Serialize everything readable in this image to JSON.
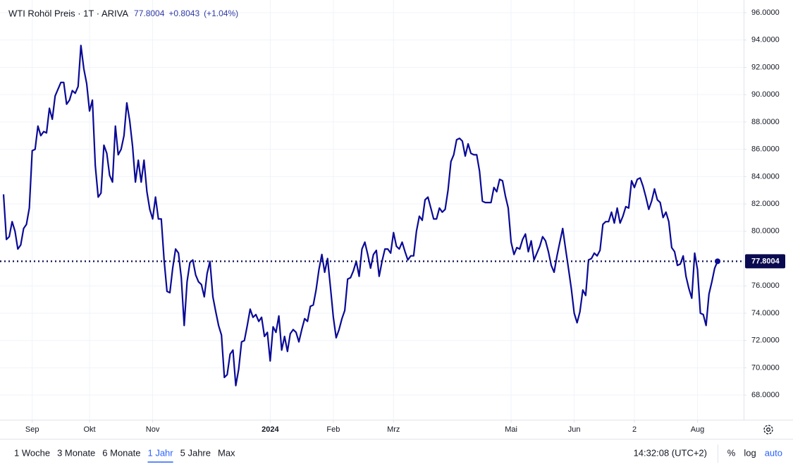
{
  "header": {
    "title": "WTI Rohöl Preis · 1T · ARIVA",
    "change": "+0.8043",
    "change_pct": "(+1.04%)"
  },
  "chart_data": {
    "type": "line",
    "color": "#0a0a96",
    "grid": true,
    "values": [
      82.7,
      79.4,
      79.6,
      80.7,
      80.0,
      78.7,
      79.0,
      80.2,
      80.5,
      81.7,
      85.9,
      86.0,
      87.7,
      87.0,
      87.3,
      87.2,
      89.0,
      88.2,
      89.9,
      90.4,
      90.9,
      90.9,
      89.3,
      89.6,
      90.3,
      90.1,
      90.6,
      93.6,
      91.9,
      90.8,
      88.8,
      89.6,
      84.8,
      82.5,
      82.8,
      86.3,
      85.7,
      84.1,
      83.6,
      87.7,
      85.6,
      86.0,
      87.0,
      89.4,
      88.1,
      86.2,
      83.6,
      85.2,
      83.6,
      85.2,
      82.9,
      81.6,
      80.9,
      82.5,
      80.9,
      80.9,
      77.9,
      75.6,
      75.5,
      77.3,
      78.7,
      78.4,
      76.6,
      73.1,
      76.3,
      77.7,
      77.9,
      76.8,
      76.3,
      76.1,
      75.2,
      76.9,
      77.8,
      75.2,
      74.1,
      73.1,
      72.4,
      69.3,
      69.5,
      71.0,
      71.3,
      68.7,
      69.9,
      71.9,
      72.0,
      73.1,
      74.3,
      73.7,
      73.9,
      73.4,
      73.7,
      72.3,
      72.6,
      70.5,
      73.0,
      72.6,
      73.8,
      71.3,
      72.3,
      71.2,
      72.5,
      72.8,
      72.6,
      71.9,
      72.8,
      73.6,
      73.4,
      74.5,
      74.6,
      75.7,
      77.2,
      78.3,
      77.0,
      78.0,
      75.9,
      73.7,
      72.2,
      72.8,
      73.6,
      74.2,
      76.5,
      76.6,
      77.1,
      77.8,
      76.7,
      78.7,
      79.2,
      78.3,
      77.3,
      78.3,
      78.6,
      76.7,
      77.8,
      78.7,
      78.7,
      78.4,
      79.9,
      78.9,
      78.7,
      79.2,
      78.5,
      77.9,
      78.2,
      78.2,
      80.0,
      81.1,
      80.8,
      82.3,
      82.5,
      81.7,
      80.9,
      80.9,
      81.7,
      81.4,
      81.6,
      83.0,
      85.1,
      85.6,
      86.7,
      86.8,
      86.6,
      85.5,
      86.4,
      85.7,
      85.6,
      85.6,
      84.4,
      82.2,
      82.1,
      82.1,
      82.1,
      83.2,
      82.9,
      83.8,
      83.7,
      82.6,
      81.7,
      79.2,
      78.3,
      78.8,
      78.7,
      79.4,
      79.8,
      78.5,
      79.3,
      77.9,
      78.4,
      78.9,
      79.6,
      79.3,
      78.5,
      77.5,
      77.0,
      78.2,
      79.2,
      80.2,
      78.7,
      77.3,
      75.8,
      74.0,
      73.3,
      74.1,
      75.7,
      75.3,
      77.9,
      78.0,
      78.4,
      78.2,
      78.6,
      80.5,
      80.7,
      80.7,
      81.4,
      80.6,
      81.7,
      80.6,
      81.1,
      81.8,
      81.7,
      83.7,
      83.2,
      83.8,
      83.9,
      83.3,
      82.5,
      81.6,
      82.2,
      83.1,
      82.3,
      82.1,
      81.0,
      81.4,
      80.7,
      78.8,
      78.5,
      77.5,
      77.6,
      78.2,
      76.7,
      75.8,
      75.1,
      78.4,
      77.2,
      74.0,
      73.9,
      73.1,
      75.4,
      76.3,
      77.3,
      77.8004
    ],
    "xlim": [
      0,
      249
    ],
    "xticks": [
      {
        "value": 10,
        "label": "Sep"
      },
      {
        "value": 30,
        "label": "Okt"
      },
      {
        "value": 52,
        "label": "Nov"
      },
      {
        "value": 93,
        "label": "2024"
      },
      {
        "value": 115,
        "label": "Feb"
      },
      {
        "value": 136,
        "label": "Mrz"
      },
      {
        "value": 177,
        "label": "Mai"
      },
      {
        "value": 199,
        "label": "Jun"
      },
      {
        "value": 220,
        "label": "2"
      },
      {
        "value": 242,
        "label": "Aug"
      }
    ],
    "ylim": [
      66.2,
      96.93
    ],
    "yticks": [
      {
        "value": 68,
        "label": "68.0000"
      },
      {
        "value": 70,
        "label": "70.0000"
      },
      {
        "value": 72,
        "label": "72.0000"
      },
      {
        "value": 74,
        "label": "74.0000"
      },
      {
        "value": 76,
        "label": "76.0000"
      },
      {
        "value": 80,
        "label": "80.0000"
      },
      {
        "value": 82,
        "label": "82.0000"
      },
      {
        "value": 84,
        "label": "84.0000"
      },
      {
        "value": 86,
        "label": "86.0000"
      },
      {
        "value": 88,
        "label": "88.0000"
      },
      {
        "value": 90,
        "label": "90.0000"
      },
      {
        "value": 92,
        "label": "92.0000"
      },
      {
        "value": 94,
        "label": "94.0000"
      },
      {
        "value": 96,
        "label": "96.0000"
      }
    ]
  },
  "toolbar": {
    "ranges": [
      "1 Woche",
      "3 Monate",
      "6 Monate",
      "1 Jahr",
      "5 Jahre",
      "Max"
    ],
    "active": 3,
    "time": "14:32:08 (UTC+2)",
    "options": [
      "%",
      "log",
      "auto"
    ]
  }
}
